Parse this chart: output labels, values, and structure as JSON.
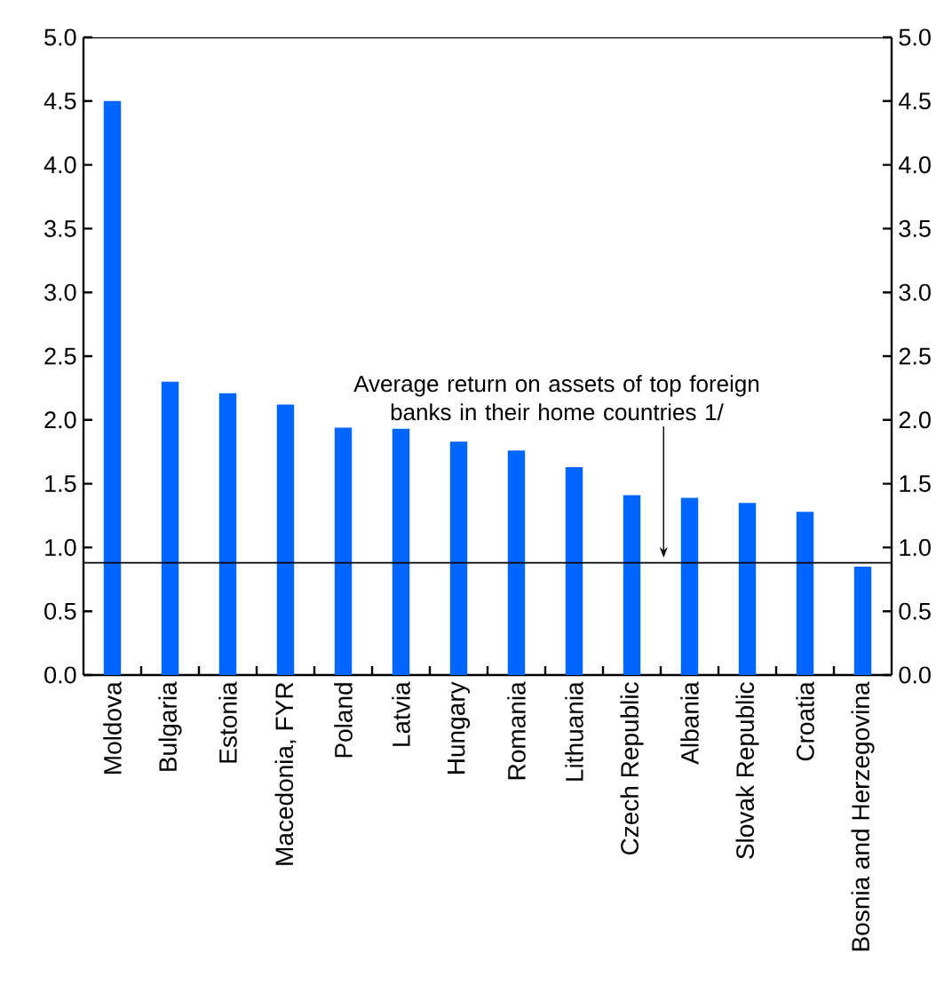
{
  "chart_data": {
    "type": "bar",
    "categories": [
      "Moldova",
      "Bulgaria",
      "Estonia",
      "Macedonia, FYR",
      "Poland",
      "Latvia",
      "Hungary",
      "Romania",
      "Lithuania",
      "Czech Republic",
      "Albania",
      "Slovak Republic",
      "Croatia",
      "Bosnia and Herzegovina"
    ],
    "values": [
      4.5,
      2.3,
      2.21,
      2.12,
      1.94,
      1.93,
      1.83,
      1.76,
      1.63,
      1.41,
      1.39,
      1.35,
      1.28,
      0.85
    ],
    "color": "#0066ff",
    "ylim": [
      0,
      5
    ],
    "yticks": [
      {
        "value": 0,
        "label": "0.0"
      },
      {
        "value": 0.5,
        "label": "0.5"
      },
      {
        "value": 1,
        "label": "1.0"
      },
      {
        "value": 1.5,
        "label": "1.5"
      },
      {
        "value": 2,
        "label": "2.0"
      },
      {
        "value": 2.5,
        "label": "2.5"
      },
      {
        "value": 3,
        "label": "3.0"
      },
      {
        "value": 3.5,
        "label": "3.5"
      },
      {
        "value": 4,
        "label": "4.0"
      },
      {
        "value": 4.5,
        "label": "4.5"
      },
      {
        "value": 5,
        "label": "5.0"
      }
    ],
    "y2lim": [
      0,
      5
    ],
    "y2ticks": [
      {
        "value": 0,
        "label": "0.0"
      },
      {
        "value": 0.5,
        "label": "0.5"
      },
      {
        "value": 1,
        "label": "1.0"
      },
      {
        "value": 1.5,
        "label": "1.5"
      },
      {
        "value": 2,
        "label": "2.0"
      },
      {
        "value": 2.5,
        "label": "2.5"
      },
      {
        "value": 3,
        "label": "3.0"
      },
      {
        "value": 3.5,
        "label": "3.5"
      },
      {
        "value": 4,
        "label": "4.0"
      },
      {
        "value": 4.5,
        "label": "4.5"
      },
      {
        "value": 5,
        "label": "5.0"
      }
    ],
    "ref_lines": [
      {
        "axis": "y",
        "value": 0.88,
        "label": "Average return on assets of top foreign banks in their home countries 1/",
        "color": "#000000",
        "line_style": "solid"
      }
    ],
    "grid": false
  }
}
